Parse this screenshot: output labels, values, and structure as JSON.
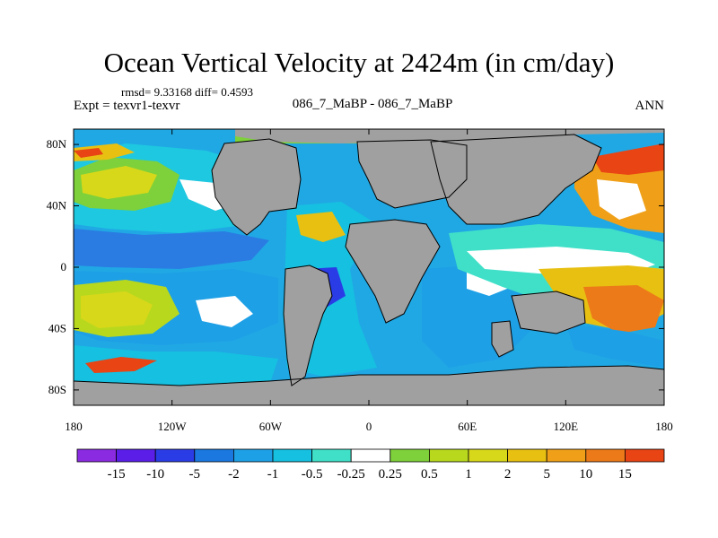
{
  "chart_data": {
    "type": "heatmap",
    "title": "Ocean Vertical Velocity at 2424m (in cm/day)",
    "stats_text": "rmsd= 9.33168 diff= 0.4593",
    "left_label": "Expt = texvr1-texvr",
    "center_label": "086_7_MaBP - 086_7_MaBP",
    "right_label": "ANN",
    "xlim": [
      -180,
      180
    ],
    "ylim": [
      -90,
      90
    ],
    "x_ticks": [
      {
        "value": -180,
        "label": "180"
      },
      {
        "value": -120,
        "label": "120W"
      },
      {
        "value": -60,
        "label": "60W"
      },
      {
        "value": 0,
        "label": "0"
      },
      {
        "value": 60,
        "label": "60E"
      },
      {
        "value": 120,
        "label": "120E"
      },
      {
        "value": 180,
        "label": "180"
      }
    ],
    "y_ticks": [
      {
        "value": 80,
        "label": "80N"
      },
      {
        "value": 40,
        "label": "40N"
      },
      {
        "value": 0,
        "label": "0"
      },
      {
        "value": -40,
        "label": "40S"
      },
      {
        "value": -80,
        "label": "80S"
      }
    ],
    "colorbar": {
      "colors": [
        "#8a2be2",
        "#5a1ee8",
        "#2a3ce6",
        "#1a78e0",
        "#1ea0e6",
        "#16c0e0",
        "#40e0c8",
        "#ffffff",
        "#7ed13a",
        "#b8d81e",
        "#d8d81a",
        "#e8c012",
        "#f0a018",
        "#ec7a18",
        "#e84414"
      ],
      "labels": [
        "-15",
        "-10",
        "-5",
        "-2",
        "-1",
        "-0.5",
        "-0.25",
        "0.25",
        "0.5",
        "1",
        "2",
        "5",
        "10",
        "15"
      ]
    },
    "colors": {
      "land": "#a0a0a0",
      "ocean_base": "#20a8e4"
    }
  }
}
